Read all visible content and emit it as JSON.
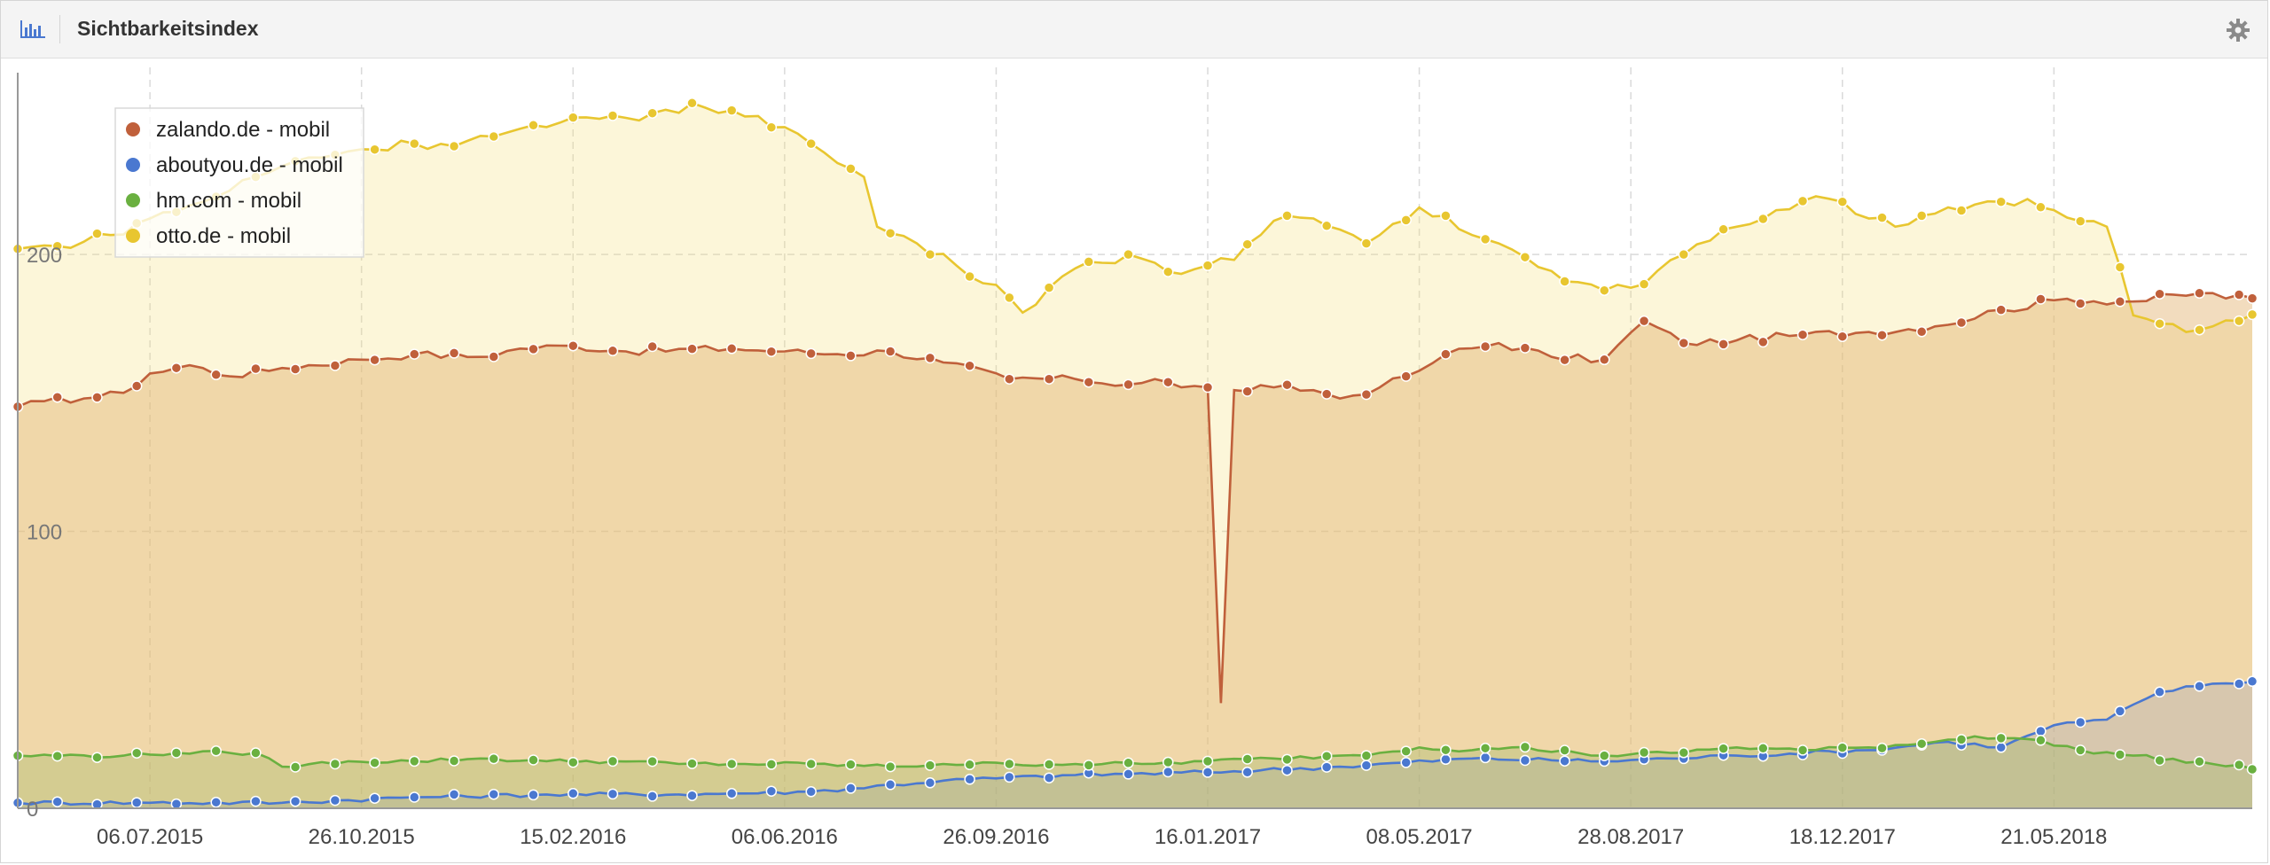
{
  "header": {
    "title": "Sichtbarkeitsindex",
    "chart_icon": "bar-chart-icon",
    "settings_icon": "gear-icon"
  },
  "colors": {
    "zalando": "#c0603b",
    "aboutyou": "#4a78d0",
    "hm": "#6ab040",
    "otto": "#e8c630",
    "grid": "#dadada"
  },
  "chart_data": {
    "type": "area",
    "title": "Sichtbarkeitsindex",
    "ylim": [
      0,
      265
    ],
    "yticks": [
      0,
      100,
      200
    ],
    "grid": true,
    "legend_position": "top-left",
    "x_tick_labels": [
      "06.07.2015",
      "26.10.2015",
      "15.02.2016",
      "06.06.2016",
      "26.09.2016",
      "16.01.2017",
      "08.05.2017",
      "28.08.2017",
      "18.12.2017",
      "21.05.2018"
    ],
    "x_tick_index": [
      10,
      26,
      42,
      58,
      74,
      90,
      106,
      122,
      138,
      154
    ],
    "x_count": 170,
    "series": [
      {
        "name": "zalando.de - mobil",
        "color": "#c0603b",
        "keys": [
          [
            0,
            145
          ],
          [
            2,
            147
          ],
          [
            5,
            148
          ],
          [
            8,
            150
          ],
          [
            10,
            157
          ],
          [
            13,
            160
          ],
          [
            16,
            156
          ],
          [
            20,
            159
          ],
          [
            26,
            162
          ],
          [
            30,
            164
          ],
          [
            35,
            163
          ],
          [
            38,
            166
          ],
          [
            42,
            167
          ],
          [
            46,
            165
          ],
          [
            54,
            166
          ],
          [
            58,
            165
          ],
          [
            62,
            164
          ],
          [
            66,
            165
          ],
          [
            70,
            161
          ],
          [
            75,
            155
          ],
          [
            80,
            155
          ],
          [
            84,
            153
          ],
          [
            86,
            155
          ],
          [
            88,
            152
          ],
          [
            90,
            152
          ],
          [
            91,
            38
          ],
          [
            92,
            151
          ],
          [
            95,
            152
          ],
          [
            98,
            151
          ],
          [
            100,
            148
          ],
          [
            103,
            152
          ],
          [
            105,
            156
          ],
          [
            106,
            158
          ],
          [
            108,
            164
          ],
          [
            112,
            168
          ],
          [
            116,
            163
          ],
          [
            120,
            162
          ],
          [
            123,
            176
          ],
          [
            126,
            168
          ],
          [
            130,
            169
          ],
          [
            135,
            171
          ],
          [
            140,
            172
          ],
          [
            145,
            174
          ],
          [
            150,
            180
          ],
          [
            155,
            184
          ],
          [
            160,
            183
          ],
          [
            165,
            186
          ],
          [
            170,
            183
          ]
        ]
      },
      {
        "name": "aboutyou.de - mobil",
        "color": "#4a78d0",
        "keys": [
          [
            0,
            2
          ],
          [
            10,
            2
          ],
          [
            20,
            2
          ],
          [
            30,
            4
          ],
          [
            40,
            5
          ],
          [
            50,
            5
          ],
          [
            60,
            6
          ],
          [
            70,
            10
          ],
          [
            80,
            12
          ],
          [
            90,
            13
          ],
          [
            100,
            15
          ],
          [
            110,
            18
          ],
          [
            120,
            17
          ],
          [
            125,
            18
          ],
          [
            130,
            19
          ],
          [
            140,
            21
          ],
          [
            146,
            24
          ],
          [
            150,
            22
          ],
          [
            154,
            30
          ],
          [
            158,
            32
          ],
          [
            162,
            42
          ],
          [
            166,
            45
          ],
          [
            170,
            46
          ]
        ]
      },
      {
        "name": "hm.com - mobil",
        "color": "#6ab040",
        "keys": [
          [
            0,
            19
          ],
          [
            8,
            19
          ],
          [
            12,
            20
          ],
          [
            16,
            20
          ],
          [
            18,
            20
          ],
          [
            20,
            15
          ],
          [
            25,
            17
          ],
          [
            30,
            17
          ],
          [
            35,
            18
          ],
          [
            40,
            17
          ],
          [
            45,
            17
          ],
          [
            50,
            16
          ],
          [
            55,
            16
          ],
          [
            60,
            16
          ],
          [
            66,
            15
          ],
          [
            70,
            16
          ],
          [
            75,
            16
          ],
          [
            80,
            16
          ],
          [
            85,
            16
          ],
          [
            90,
            17
          ],
          [
            95,
            18
          ],
          [
            100,
            19
          ],
          [
            103,
            20
          ],
          [
            106,
            22
          ],
          [
            110,
            21
          ],
          [
            113,
            22
          ],
          [
            118,
            20
          ],
          [
            120,
            19
          ],
          [
            125,
            20
          ],
          [
            130,
            22
          ],
          [
            135,
            21
          ],
          [
            140,
            22
          ],
          [
            145,
            24
          ],
          [
            148,
            26
          ],
          [
            152,
            25
          ],
          [
            156,
            21
          ],
          [
            160,
            19
          ],
          [
            166,
            16
          ],
          [
            170,
            14
          ]
        ]
      },
      {
        "name": "otto.de - mobil",
        "color": "#e8c630",
        "keys": [
          [
            0,
            202
          ],
          [
            3,
            203
          ],
          [
            7,
            207
          ],
          [
            10,
            213
          ],
          [
            14,
            219
          ],
          [
            18,
            228
          ],
          [
            22,
            235
          ],
          [
            26,
            238
          ],
          [
            30,
            240
          ],
          [
            34,
            241
          ],
          [
            37,
            244
          ],
          [
            40,
            246
          ],
          [
            44,
            249
          ],
          [
            48,
            251
          ],
          [
            52,
            253
          ],
          [
            54,
            252
          ],
          [
            56,
            250
          ],
          [
            58,
            246
          ],
          [
            60,
            240
          ],
          [
            62,
            233
          ],
          [
            64,
            228
          ],
          [
            65,
            210
          ],
          [
            68,
            204
          ],
          [
            71,
            196
          ],
          [
            74,
            189
          ],
          [
            76,
            179
          ],
          [
            78,
            188
          ],
          [
            80,
            195
          ],
          [
            82,
            197
          ],
          [
            84,
            200
          ],
          [
            86,
            197
          ],
          [
            88,
            193
          ],
          [
            90,
            196
          ],
          [
            92,
            198
          ],
          [
            94,
            207
          ],
          [
            96,
            214
          ],
          [
            98,
            213
          ],
          [
            100,
            209
          ],
          [
            102,
            204
          ],
          [
            104,
            211
          ],
          [
            106,
            217
          ],
          [
            108,
            214
          ],
          [
            110,
            207
          ],
          [
            112,
            204
          ],
          [
            114,
            199
          ],
          [
            116,
            194
          ],
          [
            118,
            190
          ],
          [
            120,
            187
          ],
          [
            122,
            188
          ],
          [
            124,
            194
          ],
          [
            126,
            200
          ],
          [
            128,
            205
          ],
          [
            130,
            210
          ],
          [
            133,
            216
          ],
          [
            136,
            221
          ],
          [
            138,
            219
          ],
          [
            140,
            213
          ],
          [
            142,
            210
          ],
          [
            144,
            214
          ],
          [
            146,
            217
          ],
          [
            148,
            218
          ],
          [
            150,
            219
          ],
          [
            152,
            220
          ],
          [
            154,
            216
          ],
          [
            156,
            212
          ],
          [
            158,
            210
          ],
          [
            160,
            178
          ],
          [
            162,
            175
          ],
          [
            164,
            172
          ],
          [
            166,
            174
          ],
          [
            168,
            176
          ],
          [
            170,
            178
          ]
        ]
      }
    ]
  }
}
